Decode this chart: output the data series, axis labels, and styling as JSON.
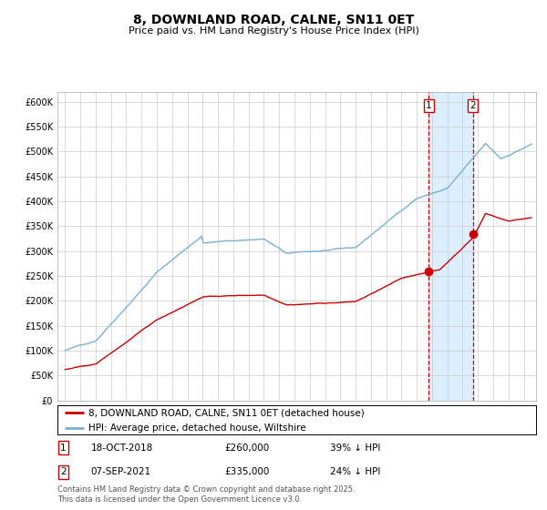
{
  "title": "8, DOWNLAND ROAD, CALNE, SN11 0ET",
  "subtitle": "Price paid vs. HM Land Registry's House Price Index (HPI)",
  "legend_label_red": "8, DOWNLAND ROAD, CALNE, SN11 0ET (detached house)",
  "legend_label_blue": "HPI: Average price, detached house, Wiltshire",
  "transaction1_date": "18-OCT-2018",
  "transaction1_price": 260000,
  "transaction1_label": "39% ↓ HPI",
  "transaction2_date": "07-SEP-2021",
  "transaction2_price": 335000,
  "transaction2_label": "24% ↓ HPI",
  "footer": "Contains HM Land Registry data © Crown copyright and database right 2025.\nThis data is licensed under the Open Government Licence v3.0.",
  "ylim": [
    0,
    620000
  ],
  "yticks": [
    0,
    50000,
    100000,
    150000,
    200000,
    250000,
    300000,
    350000,
    400000,
    450000,
    500000,
    550000,
    600000
  ],
  "red_color": "#cc0000",
  "blue_color": "#7ab0d4",
  "bg_color": "#ffffff",
  "grid_color": "#cccccc",
  "vline_color": "#cc0000",
  "highlight_color": "#ddeeff",
  "title_fontsize": 10,
  "subtitle_fontsize": 8,
  "axis_fontsize": 7,
  "legend_fontsize": 7.5,
  "footer_fontsize": 6
}
